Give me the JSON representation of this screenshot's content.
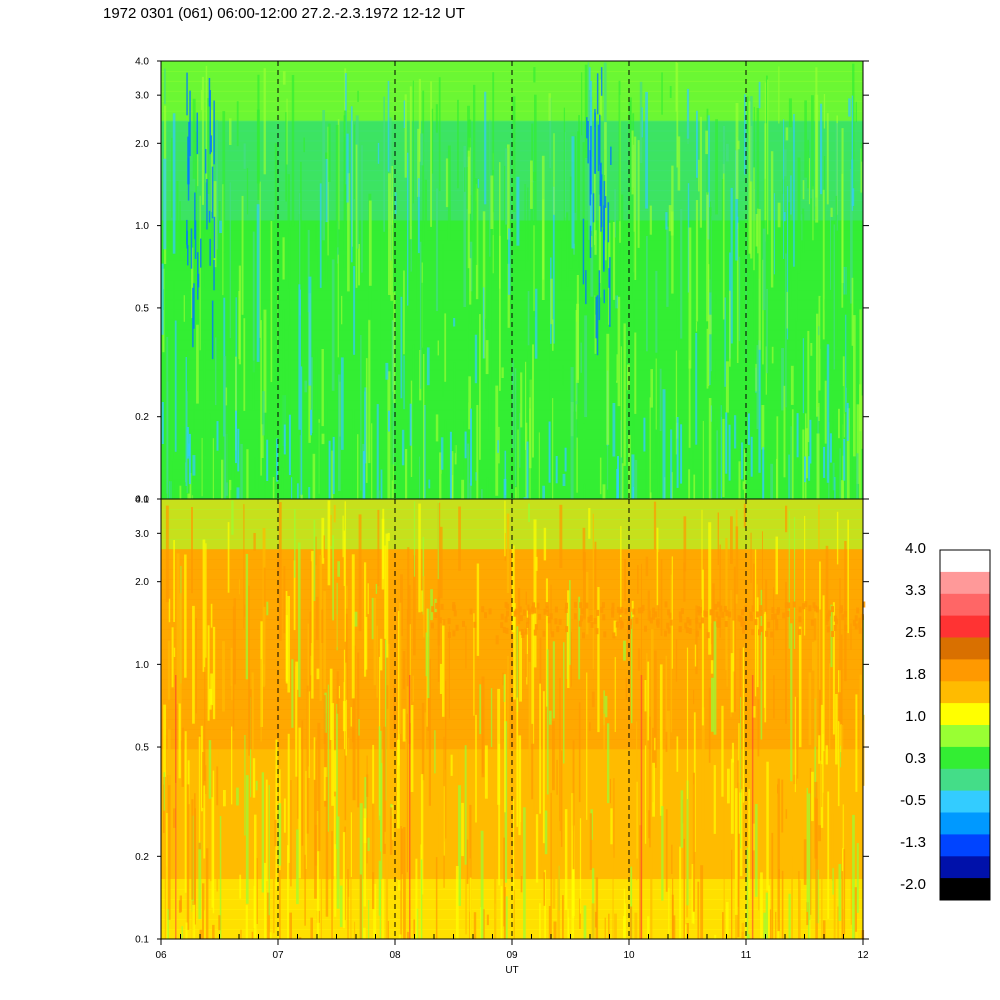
{
  "title": "1972 0301 (061) 06:00-12:00 27.2.-2.3.1972  12-12 UT",
  "chart_data": [
    {
      "type": "heatmap",
      "panel": "top",
      "x": {
        "range": [
          6,
          12
        ],
        "ticks": [
          6,
          7,
          8,
          9,
          10,
          11,
          12
        ],
        "tick_labels": [
          "06",
          "07",
          "08",
          "09",
          "10",
          "11",
          "12"
        ],
        "label": "UT"
      },
      "y": {
        "scale": "log",
        "range": [
          0.1,
          4.0
        ],
        "ticks": [
          0.1,
          0.2,
          0.5,
          1.0,
          2.0,
          3.0,
          4.0
        ],
        "tick_labels": [
          "0.1",
          "0.2",
          "0.5",
          "1.0",
          "2.0",
          "3.0",
          "4.0"
        ]
      },
      "dashed_vlines": [
        7,
        8,
        9,
        10,
        11
      ],
      "dominant_levels": "0.3 to 1.0 (green / light green), with -0.5 to -1.3 (blue) streaks near 06:20 and 09:45"
    },
    {
      "type": "heatmap",
      "panel": "bottom",
      "x": {
        "range": [
          6,
          12
        ],
        "ticks": [
          6,
          7,
          8,
          9,
          10,
          11,
          12
        ],
        "tick_labels": [
          "06",
          "07",
          "08",
          "09",
          "10",
          "11",
          "12"
        ],
        "label": "UT"
      },
      "y": {
        "scale": "log",
        "range": [
          0.1,
          4.0
        ],
        "ticks": [
          0.1,
          0.2,
          0.5,
          1.0,
          2.0,
          3.0,
          4.0
        ],
        "tick_labels": [
          "0.1",
          "0.2",
          "0.5",
          "1.0",
          "2.0",
          "3.0",
          "4.0"
        ]
      },
      "dashed_vlines": [
        7,
        8,
        9,
        10,
        11
      ],
      "dominant_levels": "1.0 to 1.8 (yellow / orange), band near 1.5 from 08:30 to 12:00"
    }
  ],
  "colorbar": {
    "labels": [
      "4.0",
      "3.3",
      "2.5",
      "1.8",
      "1.0",
      "0.3",
      "-0.5",
      "-1.3",
      "-2.0"
    ],
    "colors": [
      "#ffffff",
      "#ff9999",
      "#ff6666",
      "#ff3333",
      "#d97000",
      "#ff9900",
      "#ffbb00",
      "#ffff00",
      "#99ff33",
      "#33ee33",
      "#44dd88",
      "#33ccff",
      "#0099ff",
      "#0044ff",
      "#0011aa",
      "#000000"
    ]
  },
  "colors": {
    "top_green": "#33ee33",
    "top_lightgreen": "#99ff33",
    "top_teal": "#44dd88",
    "top_cyan": "#33ccff",
    "top_blue": "#0077ff",
    "bot_yellow": "#ffff00",
    "bot_gold": "#ffbb00",
    "bot_orange": "#ff9900",
    "bot_lightgreen": "#99ff33",
    "bot_red": "#ff3333"
  }
}
